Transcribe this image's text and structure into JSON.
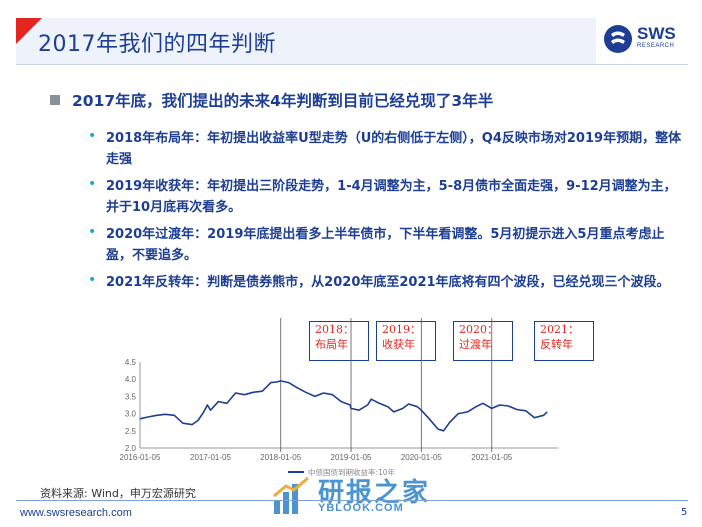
{
  "header": {
    "title": "2017年我们的四年判断"
  },
  "logo": {
    "text": "SWS",
    "sub": "RESEARCH"
  },
  "main": {
    "heading": "2017年底，我们提出的未来4年判断到目前已经兑现了3年半",
    "items": [
      {
        "bullet": "•",
        "text": "2018年布局年：年初提出收益率U型走势（U的右侧低于左侧），Q4反映市场对2019年预期，整体走强"
      },
      {
        "bullet": "•",
        "text": "2019年收获年：年初提出三阶段走势，1-4月调整为主，5-8月债市全面走强，9-12月调整为主，并于10月底再次看多。"
      },
      {
        "bullet": "•",
        "text": "2020年过渡年：2019年底提出看多上半年债市，下半年看调整。5月初提示进入5月重点考虑止盈，不要追多。"
      },
      {
        "bullet": "•",
        "text": "2021年反转年：判断是债券熊市，从2020年底至2021年底将有四个波段，已经兑现三个波段。"
      }
    ]
  },
  "annotations": [
    {
      "line1": "2018：",
      "line2": "布局年"
    },
    {
      "line1": "2019：",
      "line2": "收获年"
    },
    {
      "line1": "2020：",
      "line2": "过渡年"
    },
    {
      "line1": "2021：",
      "line2": "反转年"
    }
  ],
  "chart_data": {
    "type": "line",
    "series": [
      {
        "name": "中债国债到期收益率:10年",
        "color": "#1d3e93",
        "points": [
          [
            "2016-01-05",
            2.85
          ],
          [
            "2016-02-15",
            2.9
          ],
          [
            "2016-04-01",
            2.95
          ],
          [
            "2016-05-15",
            2.98
          ],
          [
            "2016-07-01",
            2.95
          ],
          [
            "2016-08-15",
            2.72
          ],
          [
            "2016-10-01",
            2.68
          ],
          [
            "2016-11-01",
            2.8
          ],
          [
            "2016-12-01",
            3.05
          ],
          [
            "2016-12-20",
            3.25
          ],
          [
            "2017-01-05",
            3.1
          ],
          [
            "2017-02-15",
            3.35
          ],
          [
            "2017-04-01",
            3.3
          ],
          [
            "2017-05-15",
            3.6
          ],
          [
            "2017-07-01",
            3.55
          ],
          [
            "2017-08-15",
            3.62
          ],
          [
            "2017-10-01",
            3.65
          ],
          [
            "2017-11-15",
            3.9
          ],
          [
            "2017-12-15",
            3.92
          ],
          [
            "2018-01-05",
            3.95
          ],
          [
            "2018-02-15",
            3.9
          ],
          [
            "2018-04-01",
            3.75
          ],
          [
            "2018-05-15",
            3.62
          ],
          [
            "2018-07-01",
            3.5
          ],
          [
            "2018-08-15",
            3.6
          ],
          [
            "2018-10-01",
            3.55
          ],
          [
            "2018-11-15",
            3.35
          ],
          [
            "2018-12-31",
            3.25
          ],
          [
            "2019-01-05",
            3.15
          ],
          [
            "2019-02-15",
            3.1
          ],
          [
            "2019-04-01",
            3.25
          ],
          [
            "2019-04-20",
            3.42
          ],
          [
            "2019-06-01",
            3.3
          ],
          [
            "2019-07-15",
            3.2
          ],
          [
            "2019-08-15",
            3.05
          ],
          [
            "2019-10-01",
            3.15
          ],
          [
            "2019-10-31",
            3.28
          ],
          [
            "2019-12-15",
            3.2
          ],
          [
            "2020-01-05",
            3.1
          ],
          [
            "2020-02-15",
            2.85
          ],
          [
            "2020-04-01",
            2.55
          ],
          [
            "2020-04-30",
            2.5
          ],
          [
            "2020-06-01",
            2.75
          ],
          [
            "2020-07-15",
            3.0
          ],
          [
            "2020-09-01",
            3.05
          ],
          [
            "2020-10-15",
            3.2
          ],
          [
            "2020-11-20",
            3.3
          ],
          [
            "2021-01-05",
            3.15
          ],
          [
            "2021-02-15",
            3.25
          ],
          [
            "2021-04-01",
            3.22
          ],
          [
            "2021-05-15",
            3.12
          ],
          [
            "2021-07-01",
            3.08
          ],
          [
            "2021-08-15",
            2.88
          ],
          [
            "2021-10-01",
            2.95
          ],
          [
            "2021-10-20",
            3.05
          ]
        ]
      }
    ],
    "x_tick_labels": [
      "2016-01-05",
      "2017-01-05",
      "2018-01-05",
      "2019-01-05",
      "2020-01-05",
      "2021-01-05"
    ],
    "y_tick_labels": [
      "2.0",
      "2.5",
      "3.0",
      "3.5",
      "4.0",
      "4.5"
    ],
    "ylim": [
      2.0,
      4.5
    ],
    "xlim": [
      "2016-01-05",
      "2021-12-15"
    ],
    "markers": [
      "2018-01-05",
      "2019-01-05",
      "2020-01-05",
      "2021-01-05"
    ],
    "legend_label": "中债国债到期收益率:10年",
    "legend_position": "bottom"
  },
  "footer": {
    "source": "资料来源: Wind，申万宏源研究",
    "url": "www.swsresearch.com",
    "page": "5"
  },
  "watermark": {
    "cn": "研报之家",
    "en": "YBLOOK.COM"
  }
}
